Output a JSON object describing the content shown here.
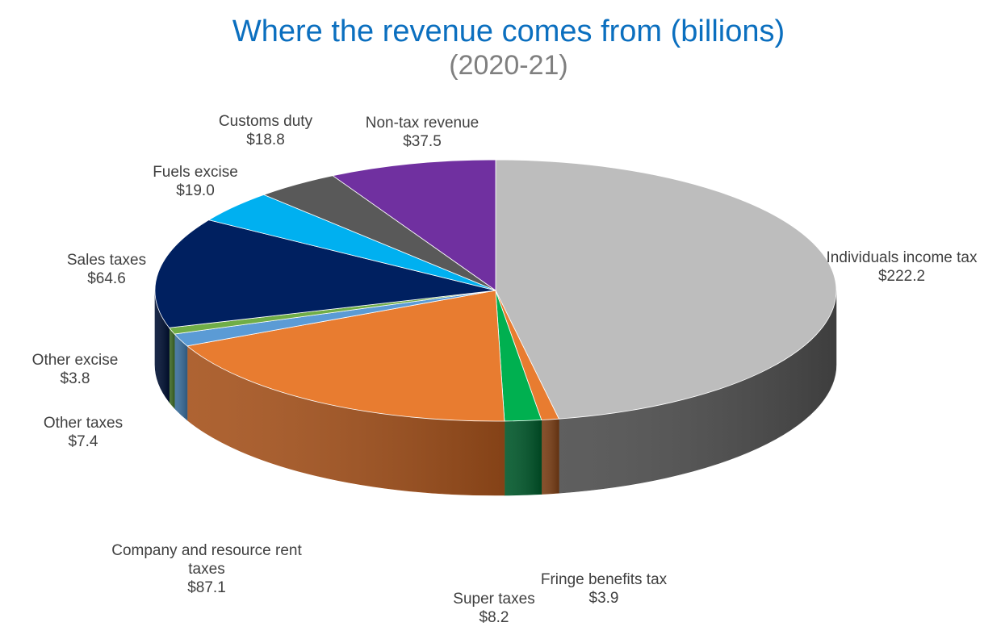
{
  "chart_data": {
    "type": "pie",
    "title": "Where the revenue comes from (billions)",
    "subtitle": "(2020-21)",
    "slices": [
      {
        "name": "Individuals income tax",
        "value_label": "$222.2",
        "value": 222.2,
        "color": "#BDBDBD",
        "side": "#4D4D4D"
      },
      {
        "name": "Fringe benefits tax",
        "value_label": "$3.9",
        "value": 3.9,
        "color": "#E87C30",
        "side": "#7A3E15"
      },
      {
        "name": "Super taxes",
        "value_label": "$8.2",
        "value": 8.2,
        "color": "#00B050",
        "side": "#00572A"
      },
      {
        "name": "Company and resource rent taxes",
        "value_label": "$87.1",
        "value": 87.1,
        "color": "#E87C30",
        "side": "#A5521C"
      },
      {
        "name": "Other taxes",
        "value_label": "$7.4",
        "value": 7.4,
        "color": "#5B9BD5",
        "side": "#3A6E9C"
      },
      {
        "name": "Other excise",
        "value_label": "$3.8",
        "value": 3.8,
        "color": "#70AD47",
        "side": "#3F6B26"
      },
      {
        "name": "Sales taxes",
        "value_label": "$64.6",
        "value": 64.6,
        "color": "#002060",
        "side": "#001033"
      },
      {
        "name": "Fuels excise",
        "value_label": "$19.0",
        "value": 19.0,
        "color": "#00B0F0",
        "side": "#006E96"
      },
      {
        "name": "Customs duty",
        "value_label": "$18.8",
        "value": 18.8,
        "color": "#595959",
        "side": "#2E2E2E"
      },
      {
        "name": "Non-tax revenue",
        "value_label": "$37.5",
        "value": 37.5,
        "color": "#7030A0",
        "side": "#3D1A58"
      }
    ]
  }
}
